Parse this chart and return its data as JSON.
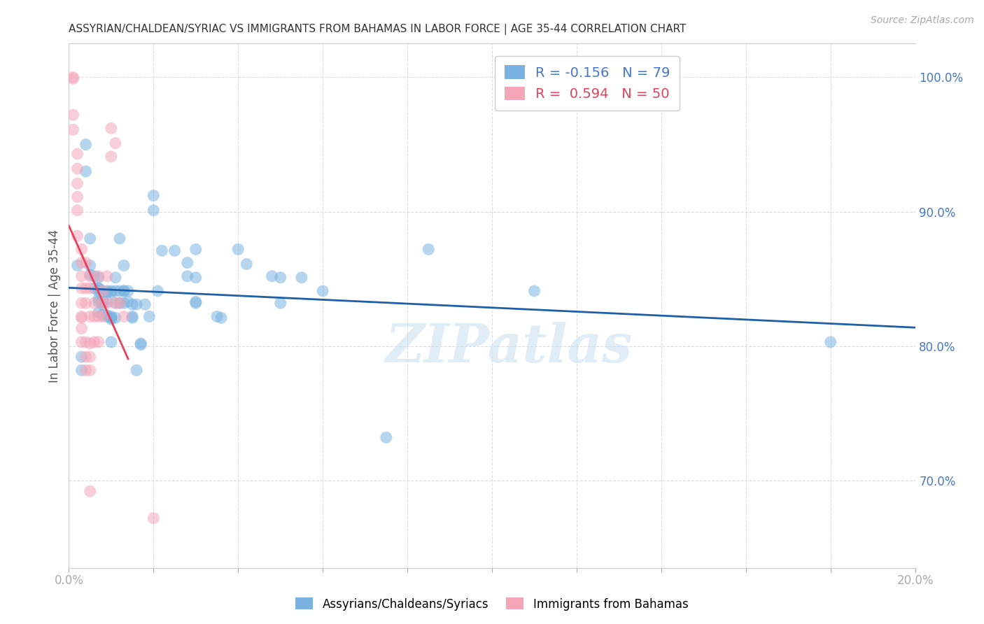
{
  "title": "ASSYRIAN/CHALDEAN/SYRIAC VS IMMIGRANTS FROM BAHAMAS IN LABOR FORCE | AGE 35-44 CORRELATION CHART",
  "source": "Source: ZipAtlas.com",
  "ylabel": "In Labor Force | Age 35-44",
  "xlim": [
    0.0,
    0.2
  ],
  "ylim": [
    0.635,
    1.025
  ],
  "xticks": [
    0.0,
    0.02,
    0.04,
    0.06,
    0.08,
    0.1,
    0.12,
    0.14,
    0.16,
    0.18,
    0.2
  ],
  "yticks_right": [
    0.7,
    0.8,
    0.9,
    1.0
  ],
  "ytick_right_labels": [
    "70.0%",
    "80.0%",
    "90.0%",
    "100.0%"
  ],
  "blue_R": -0.156,
  "blue_N": 79,
  "pink_R": 0.594,
  "pink_N": 50,
  "blue_color": "#7ab3e0",
  "pink_color": "#f4a6b8",
  "blue_line_color": "#1f5faa",
  "pink_line_color": "#e8405a",
  "legend_label_blue": "Assyrians/Chaldeans/Syriacs",
  "legend_label_pink": "Immigrants from Bahamas",
  "watermark": "ZIPatlas",
  "background_color": "#ffffff",
  "blue_scatter": [
    [
      0.002,
      0.86
    ],
    [
      0.003,
      0.792
    ],
    [
      0.003,
      0.782
    ],
    [
      0.004,
      0.95
    ],
    [
      0.004,
      0.93
    ],
    [
      0.005,
      0.88
    ],
    [
      0.005,
      0.86
    ],
    [
      0.005,
      0.853
    ],
    [
      0.006,
      0.852
    ],
    [
      0.006,
      0.843
    ],
    [
      0.007,
      0.843
    ],
    [
      0.007,
      0.841
    ],
    [
      0.007,
      0.835
    ],
    [
      0.007,
      0.833
    ],
    [
      0.007,
      0.825
    ],
    [
      0.007,
      0.851
    ],
    [
      0.007,
      0.843
    ],
    [
      0.008,
      0.833
    ],
    [
      0.008,
      0.841
    ],
    [
      0.008,
      0.833
    ],
    [
      0.008,
      0.823
    ],
    [
      0.008,
      0.831
    ],
    [
      0.009,
      0.833
    ],
    [
      0.009,
      0.841
    ],
    [
      0.009,
      0.823
    ],
    [
      0.009,
      0.84
    ],
    [
      0.009,
      0.822
    ],
    [
      0.01,
      0.841
    ],
    [
      0.01,
      0.84
    ],
    [
      0.01,
      0.822
    ],
    [
      0.01,
      0.821
    ],
    [
      0.01,
      0.82
    ],
    [
      0.01,
      0.803
    ],
    [
      0.011,
      0.832
    ],
    [
      0.011,
      0.851
    ],
    [
      0.011,
      0.841
    ],
    [
      0.011,
      0.821
    ],
    [
      0.012,
      0.832
    ],
    [
      0.012,
      0.88
    ],
    [
      0.012,
      0.841
    ],
    [
      0.013,
      0.86
    ],
    [
      0.013,
      0.841
    ],
    [
      0.013,
      0.832
    ],
    [
      0.013,
      0.841
    ],
    [
      0.014,
      0.833
    ],
    [
      0.014,
      0.841
    ],
    [
      0.015,
      0.822
    ],
    [
      0.015,
      0.821
    ],
    [
      0.015,
      0.831
    ],
    [
      0.016,
      0.831
    ],
    [
      0.016,
      0.782
    ],
    [
      0.017,
      0.802
    ],
    [
      0.017,
      0.801
    ],
    [
      0.018,
      0.831
    ],
    [
      0.019,
      0.822
    ],
    [
      0.02,
      0.912
    ],
    [
      0.02,
      0.901
    ],
    [
      0.021,
      0.841
    ],
    [
      0.022,
      0.871
    ],
    [
      0.025,
      0.871
    ],
    [
      0.028,
      0.862
    ],
    [
      0.028,
      0.852
    ],
    [
      0.03,
      0.872
    ],
    [
      0.03,
      0.851
    ],
    [
      0.03,
      0.833
    ],
    [
      0.03,
      0.832
    ],
    [
      0.035,
      0.822
    ],
    [
      0.036,
      0.821
    ],
    [
      0.04,
      0.872
    ],
    [
      0.042,
      0.861
    ],
    [
      0.048,
      0.852
    ],
    [
      0.05,
      0.851
    ],
    [
      0.05,
      0.832
    ],
    [
      0.055,
      0.851
    ],
    [
      0.06,
      0.841
    ],
    [
      0.075,
      0.732
    ],
    [
      0.085,
      0.872
    ],
    [
      0.11,
      0.841
    ],
    [
      0.18,
      0.803
    ]
  ],
  "pink_scatter": [
    [
      0.001,
      1.0
    ],
    [
      0.001,
      0.999
    ],
    [
      0.001,
      0.972
    ],
    [
      0.001,
      0.961
    ],
    [
      0.002,
      0.943
    ],
    [
      0.002,
      0.932
    ],
    [
      0.002,
      0.921
    ],
    [
      0.002,
      0.911
    ],
    [
      0.002,
      0.901
    ],
    [
      0.002,
      0.882
    ],
    [
      0.003,
      0.872
    ],
    [
      0.003,
      0.862
    ],
    [
      0.003,
      0.852
    ],
    [
      0.003,
      0.843
    ],
    [
      0.003,
      0.832
    ],
    [
      0.003,
      0.822
    ],
    [
      0.003,
      0.821
    ],
    [
      0.003,
      0.813
    ],
    [
      0.003,
      0.803
    ],
    [
      0.004,
      0.862
    ],
    [
      0.004,
      0.843
    ],
    [
      0.004,
      0.832
    ],
    [
      0.004,
      0.803
    ],
    [
      0.004,
      0.792
    ],
    [
      0.004,
      0.782
    ],
    [
      0.005,
      0.852
    ],
    [
      0.005,
      0.843
    ],
    [
      0.005,
      0.822
    ],
    [
      0.005,
      0.802
    ],
    [
      0.005,
      0.792
    ],
    [
      0.005,
      0.782
    ],
    [
      0.005,
      0.692
    ],
    [
      0.006,
      0.832
    ],
    [
      0.006,
      0.822
    ],
    [
      0.006,
      0.803
    ],
    [
      0.007,
      0.852
    ],
    [
      0.007,
      0.822
    ],
    [
      0.007,
      0.803
    ],
    [
      0.008,
      0.841
    ],
    [
      0.008,
      0.832
    ],
    [
      0.008,
      0.822
    ],
    [
      0.009,
      0.852
    ],
    [
      0.009,
      0.832
    ],
    [
      0.01,
      0.962
    ],
    [
      0.01,
      0.941
    ],
    [
      0.011,
      0.951
    ],
    [
      0.011,
      0.832
    ],
    [
      0.012,
      0.832
    ],
    [
      0.013,
      0.822
    ],
    [
      0.02,
      0.672
    ]
  ]
}
